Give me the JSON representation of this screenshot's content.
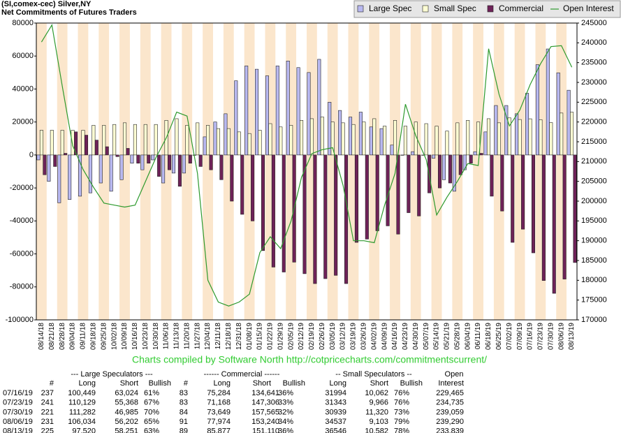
{
  "chart_data": {
    "type": "bar",
    "title": "(SI,comex-cec) Silver,NY",
    "subtitle": "Net Commitments of Futures Traders",
    "categories": [
      "08/14/18",
      "08/21/18",
      "08/28/18",
      "09/04/18",
      "09/11/18",
      "09/18/18",
      "09/25/18",
      "10/02/18",
      "10/09/18",
      "10/16/18",
      "10/23/18",
      "10/30/18",
      "11/06/18",
      "11/13/18",
      "11/20/18",
      "11/27/18",
      "12/04/18",
      "12/11/18",
      "12/18/18",
      "12/31/18",
      "01/08/19",
      "01/15/19",
      "01/22/19",
      "01/29/19",
      "02/05/19",
      "02/12/19",
      "02/19/19",
      "02/26/19",
      "03/05/19",
      "03/12/19",
      "03/19/19",
      "03/26/19",
      "04/02/19",
      "04/09/19",
      "04/16/19",
      "04/23/19",
      "04/30/19",
      "05/07/19",
      "05/14/19",
      "05/21/19",
      "05/28/19",
      "06/04/19",
      "06/11/19",
      "06/18/19",
      "06/25/19",
      "07/02/19",
      "07/09/19",
      "07/16/19",
      "07/23/19",
      "07/30/19",
      "08/06/19",
      "08/13/19"
    ],
    "series": [
      {
        "name": "Large Spec",
        "type": "bar",
        "color": "#b8b8f0",
        "values": [
          -3000,
          -16000,
          -29000,
          -27000,
          -25000,
          -23000,
          -17000,
          -22000,
          -15000,
          -5000,
          -9000,
          -3000,
          -17000,
          -11000,
          -11000,
          0,
          11000,
          20000,
          25000,
          45000,
          54000,
          52000,
          48000,
          54000,
          57000,
          53000,
          50000,
          58000,
          32000,
          27000,
          23000,
          26000,
          17000,
          16000,
          6000,
          0,
          2000,
          0,
          -2000,
          -15000,
          -22000,
          -9000,
          2000,
          14000,
          30000,
          30000,
          25000,
          37425,
          54761,
          64297,
          49832,
          39269
        ]
      },
      {
        "name": "Small Spec",
        "type": "bar",
        "color": "#ffffd4",
        "values": [
          15000,
          15000,
          15000,
          15000,
          15000,
          18000,
          18000,
          18500,
          19500,
          18500,
          18500,
          18500,
          21000,
          22000,
          18000,
          19500,
          18000,
          16000,
          16000,
          14000,
          13000,
          15000,
          19000,
          17000,
          18000,
          21000,
          22000,
          23000,
          20000,
          19500,
          18500,
          20000,
          22000,
          17500,
          21000,
          17500,
          20000,
          19000,
          17500,
          14500,
          19500,
          21000,
          20000,
          22000,
          19500,
          22500,
          21500,
          21932,
          21377,
          19619,
          25434,
          25964
        ]
      },
      {
        "name": "Commercial",
        "type": "bar",
        "color": "#6e2258",
        "values": [
          -12000,
          -7000,
          1000,
          14000,
          12000,
          9000,
          5000,
          -1000,
          4000,
          -5000,
          -5000,
          -13000,
          -9000,
          -19000,
          -5000,
          -7000,
          -9000,
          -15000,
          -28000,
          -36000,
          -40000,
          -58000,
          -68000,
          -71000,
          -65000,
          -72000,
          -78000,
          -75000,
          -73000,
          -78000,
          -53000,
          -51000,
          -46000,
          -43000,
          -48000,
          -35000,
          -37000,
          -23000,
          -20000,
          -17000,
          -12000,
          -5000,
          1000,
          -25000,
          -34000,
          -53000,
          -45000,
          -59357,
          -76138,
          -83916,
          -75266,
          -65233
        ]
      },
      {
        "name": "Open Interest",
        "type": "line",
        "axis": "y2",
        "color": "#2e9a2e",
        "values": [
          240200,
          244500,
          229000,
          214000,
          208000,
          203500,
          199500,
          199000,
          198500,
          199000,
          205000,
          211000,
          216000,
          222500,
          221500,
          207000,
          180000,
          174500,
          173500,
          174500,
          176500,
          187000,
          191000,
          188000,
          195000,
          206000,
          212000,
          213000,
          213500,
          204000,
          190000,
          190000,
          189500,
          199000,
          207000,
          224500,
          216500,
          210500,
          196500,
          201000,
          205000,
          209500,
          209000,
          238500,
          227000,
          219000,
          223000,
          229465,
          234735,
          239059,
          239290,
          233839
        ]
      }
    ],
    "ylim": [
      -100000,
      80000
    ],
    "yticks": [
      -100000,
      -80000,
      -60000,
      -40000,
      -20000,
      0,
      20000,
      40000,
      60000,
      80000
    ],
    "y2lim": [
      170000,
      245000
    ],
    "y2ticks": [
      170000,
      175000,
      180000,
      185000,
      190000,
      195000,
      200000,
      205000,
      210000,
      215000,
      220000,
      225000,
      230000,
      235000,
      240000,
      245000
    ],
    "band_colors": [
      "#fbe6cc",
      "#ffffff"
    ],
    "legend": "top-right"
  },
  "credit": "Charts compiled by Software North  http://cotpricecharts.com/commitmentscurrent/",
  "table": {
    "group_headers": [
      "--- Large Speculators ---",
      "------ Commercial ------",
      "-- Small Speculators --",
      "Open"
    ],
    "columns": [
      "#",
      "Long",
      "Short",
      "Bullish",
      "#",
      "Long",
      "Short",
      "Bullish",
      "Long",
      "Short",
      "Bullish",
      "Interest"
    ],
    "rows": [
      [
        "07/16/19",
        "237",
        "100,449",
        "63,024",
        "61%",
        "83",
        "75,284",
        "134,641",
        "36%",
        "31994",
        "10,062",
        "76%",
        "229,465"
      ],
      [
        "07/23/19",
        "241",
        "110,129",
        "55,368",
        "67%",
        "83",
        "71,168",
        "147,306",
        "33%",
        "31343",
        "9,966",
        "76%",
        "234,735"
      ],
      [
        "07/30/19",
        "221",
        "111,282",
        "46,985",
        "70%",
        "84",
        "73,649",
        "157,565",
        "32%",
        "30939",
        "11,320",
        "73%",
        "239,059"
      ],
      [
        "08/06/19",
        "231",
        "106,034",
        "56,202",
        "65%",
        "91",
        "77,974",
        "153,240",
        "34%",
        "34537",
        "9,103",
        "79%",
        "239,290"
      ],
      [
        "08/13/19",
        "225",
        "97,520",
        "58,251",
        "63%",
        "89",
        "85,877",
        "151,110",
        "36%",
        "36546",
        "10,582",
        "78%",
        "233,839"
      ]
    ]
  }
}
